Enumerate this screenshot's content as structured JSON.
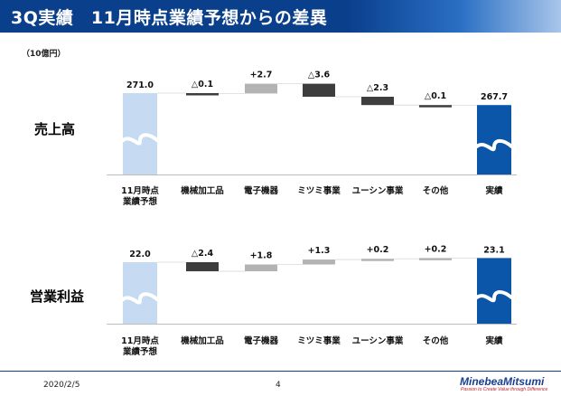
{
  "header": {
    "title": "3Q実績　11月時点業績予想からの差異"
  },
  "unit_label": "（10億円）",
  "footer": {
    "date": "2020/2/5",
    "page": "4",
    "logo": "MinebeaMitsumi",
    "tagline": "Passion to Create Value through Difference"
  },
  "colors": {
    "header": "#0a3f8c",
    "forecast": "#c6daf2",
    "actual": "#0b56a8",
    "decrease": "#3d3d3d",
    "increase": "#b3b3b3"
  },
  "chart_data": [
    {
      "type": "bar",
      "subtype": "waterfall",
      "title": "売上高",
      "categories": [
        "11月時点\n業績予想",
        "機械加工品",
        "電子機器",
        "ミツミ事業",
        "ユーシン事業",
        "その他",
        "実績"
      ],
      "values": [
        271.0,
        -0.1,
        2.7,
        -3.6,
        -2.3,
        -0.1,
        267.7
      ],
      "labels": [
        "271.0",
        "△0.1",
        "+2.7",
        "△3.6",
        "△2.3",
        "△0.1",
        "267.7"
      ],
      "axis_break": true
    },
    {
      "type": "bar",
      "subtype": "waterfall",
      "title": "営業利益",
      "categories": [
        "11月時点\n業績予想",
        "機械加工品",
        "電子機器",
        "ミツミ事業",
        "ユーシン事業",
        "その他",
        "実績"
      ],
      "values": [
        22.0,
        -2.4,
        1.8,
        1.3,
        0.2,
        0.2,
        23.1
      ],
      "labels": [
        "22.0",
        "△2.4",
        "+1.8",
        "+1.3",
        "+0.2",
        "+0.2",
        "23.1"
      ],
      "axis_break": true
    }
  ]
}
